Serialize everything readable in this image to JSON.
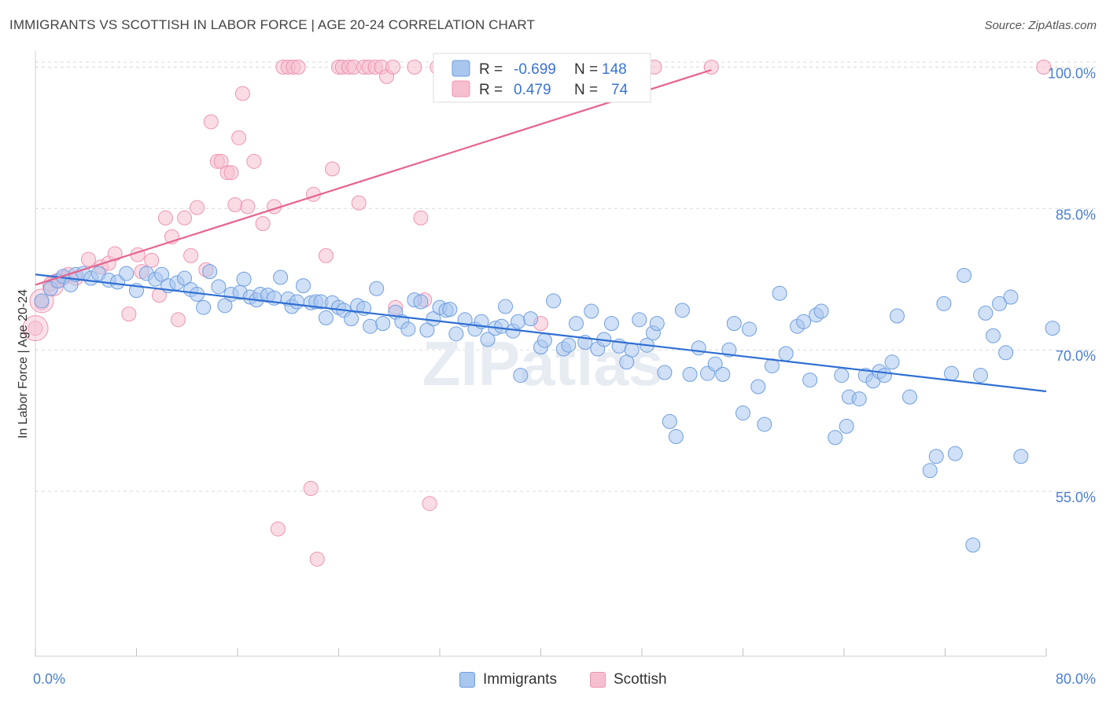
{
  "title": "IMMIGRANTS VS SCOTTISH IN LABOR FORCE | AGE 20-24 CORRELATION CHART",
  "source": "Source: ZipAtlas.com",
  "watermark": "ZIPatlas",
  "legend_box": {
    "rows": [
      {
        "r_label": "R =",
        "r_value": "-0.699",
        "n_label": "N =",
        "n_value": "148"
      },
      {
        "r_label": "R =",
        "r_value": "0.479",
        "n_label": "N =",
        "n_value": "74"
      }
    ]
  },
  "bottom_legend": {
    "immigrants": "Immigrants",
    "scottish": "Scottish"
  },
  "colors": {
    "immigrants_fill": "#a9c6ee",
    "immigrants_stroke": "#6f9fe0",
    "immigrants_line": "#2f6fd4",
    "scottish_fill": "#f6bfd0",
    "scottish_stroke": "#ee94b2",
    "scottish_line": "#e5648f",
    "tick_text": "#4a7fd0",
    "grid": "#d9d9d9"
  },
  "chart_data": {
    "type": "scatter",
    "title": "IMMIGRANTS VS SCOTTISH IN LABOR FORCE | AGE 20-24 CORRELATION CHART",
    "xlabel": "",
    "ylabel": "In Labor Force | Age 20-24",
    "xlim": [
      0,
      80
    ],
    "ylim": [
      37.5,
      101.7
    ],
    "x_tick_labels": [
      "0.0%",
      "80.0%"
    ],
    "y_tick_labels": [
      "100.0%",
      "85.0%",
      "70.0%",
      "55.0%"
    ],
    "y_ticks": [
      100,
      85,
      70,
      55
    ],
    "grid": true,
    "legend_position": "top-center",
    "series": [
      {
        "name": "Immigrants",
        "r": -0.699,
        "n": 148,
        "trend": {
          "x": [
            0,
            80
          ],
          "y": [
            78.0,
            65.6
          ]
        },
        "points": [
          [
            0.5,
            75.2
          ],
          [
            1.2,
            76.5
          ],
          [
            1.8,
            77.3
          ],
          [
            2.2,
            77.8
          ],
          [
            2.8,
            76.9
          ],
          [
            3.2,
            78.0
          ],
          [
            3.8,
            78.1
          ],
          [
            4.4,
            77.6
          ],
          [
            5.0,
            78.1
          ],
          [
            5.8,
            77.4
          ],
          [
            6.5,
            77.2
          ],
          [
            7.2,
            78.1
          ],
          [
            8.0,
            76.3
          ],
          [
            8.8,
            78.1
          ],
          [
            9.5,
            77.5
          ],
          [
            10.0,
            78.0
          ],
          [
            10.5,
            76.8
          ],
          [
            11.2,
            77.1
          ],
          [
            11.8,
            77.6
          ],
          [
            12.3,
            76.4
          ],
          [
            12.8,
            75.9
          ],
          [
            13.3,
            74.5
          ],
          [
            13.8,
            78.3
          ],
          [
            14.5,
            76.7
          ],
          [
            15.0,
            74.7
          ],
          [
            15.5,
            75.9
          ],
          [
            16.2,
            76.1
          ],
          [
            16.5,
            77.5
          ],
          [
            17.0,
            75.6
          ],
          [
            17.5,
            75.3
          ],
          [
            17.8,
            75.9
          ],
          [
            18.4,
            75.8
          ],
          [
            18.9,
            75.5
          ],
          [
            19.4,
            77.7
          ],
          [
            20.0,
            75.4
          ],
          [
            20.3,
            74.6
          ],
          [
            20.7,
            75.1
          ],
          [
            21.2,
            76.8
          ],
          [
            21.8,
            75.0
          ],
          [
            22.2,
            75.1
          ],
          [
            22.6,
            75.1
          ],
          [
            23.0,
            73.4
          ],
          [
            23.5,
            75.0
          ],
          [
            24.0,
            74.5
          ],
          [
            24.4,
            74.2
          ],
          [
            25.0,
            73.3
          ],
          [
            25.5,
            74.7
          ],
          [
            26.0,
            74.4
          ],
          [
            26.5,
            72.5
          ],
          [
            27.0,
            76.5
          ],
          [
            27.5,
            72.8
          ],
          [
            28.5,
            74.0
          ],
          [
            29.0,
            73.0
          ],
          [
            29.5,
            72.2
          ],
          [
            30.0,
            75.3
          ],
          [
            30.5,
            75.1
          ],
          [
            31.0,
            72.1
          ],
          [
            31.5,
            73.3
          ],
          [
            32.0,
            74.5
          ],
          [
            32.5,
            74.2
          ],
          [
            32.8,
            74.3
          ],
          [
            33.3,
            71.7
          ],
          [
            34.0,
            73.2
          ],
          [
            34.8,
            72.2
          ],
          [
            35.3,
            73.0
          ],
          [
            35.8,
            71.1
          ],
          [
            36.4,
            72.3
          ],
          [
            36.9,
            72.5
          ],
          [
            37.2,
            74.6
          ],
          [
            37.8,
            72.0
          ],
          [
            38.2,
            73.0
          ],
          [
            38.4,
            67.3
          ],
          [
            39.2,
            73.3
          ],
          [
            40.0,
            70.3
          ],
          [
            40.3,
            71.0
          ],
          [
            41.0,
            75.2
          ],
          [
            41.8,
            70.1
          ],
          [
            42.2,
            70.5
          ],
          [
            42.8,
            72.8
          ],
          [
            43.5,
            70.8
          ],
          [
            44.0,
            74.1
          ],
          [
            44.5,
            70.1
          ],
          [
            45.0,
            71.1
          ],
          [
            45.6,
            72.8
          ],
          [
            46.2,
            70.4
          ],
          [
            46.8,
            68.7
          ],
          [
            47.2,
            70.0
          ],
          [
            47.8,
            73.2
          ],
          [
            48.4,
            70.5
          ],
          [
            48.9,
            71.8
          ],
          [
            49.2,
            72.8
          ],
          [
            49.8,
            67.6
          ],
          [
            50.2,
            62.4
          ],
          [
            50.7,
            60.8
          ],
          [
            51.2,
            74.2
          ],
          [
            51.8,
            67.4
          ],
          [
            52.5,
            70.2
          ],
          [
            53.2,
            67.5
          ],
          [
            53.8,
            68.5
          ],
          [
            54.4,
            67.4
          ],
          [
            54.9,
            70.0
          ],
          [
            55.3,
            72.8
          ],
          [
            56.0,
            63.3
          ],
          [
            56.5,
            72.2
          ],
          [
            57.2,
            66.1
          ],
          [
            57.7,
            62.1
          ],
          [
            58.3,
            68.3
          ],
          [
            58.9,
            76.0
          ],
          [
            59.4,
            69.6
          ],
          [
            60.3,
            72.5
          ],
          [
            60.8,
            73.0
          ],
          [
            61.3,
            66.8
          ],
          [
            61.8,
            73.7
          ],
          [
            62.2,
            74.1
          ],
          [
            63.3,
            60.7
          ],
          [
            63.8,
            67.3
          ],
          [
            64.2,
            61.9
          ],
          [
            64.4,
            65.0
          ],
          [
            65.2,
            64.8
          ],
          [
            65.7,
            67.3
          ],
          [
            66.3,
            66.7
          ],
          [
            66.8,
            67.7
          ],
          [
            67.2,
            67.3
          ],
          [
            67.8,
            68.7
          ],
          [
            68.2,
            73.6
          ],
          [
            69.2,
            65.0
          ],
          [
            70.8,
            57.2
          ],
          [
            71.3,
            58.7
          ],
          [
            71.9,
            74.9
          ],
          [
            72.5,
            67.5
          ],
          [
            72.8,
            59.0
          ],
          [
            73.5,
            77.9
          ],
          [
            74.2,
            49.3
          ],
          [
            74.8,
            67.3
          ],
          [
            75.2,
            73.9
          ],
          [
            75.8,
            71.5
          ],
          [
            76.3,
            74.9
          ],
          [
            76.8,
            69.7
          ],
          [
            77.2,
            75.6
          ],
          [
            78.0,
            58.7
          ],
          [
            80.5,
            72.3
          ]
        ]
      },
      {
        "name": "Scottish",
        "r": 0.479,
        "n": 74,
        "trend": {
          "x": [
            0,
            53.5
          ],
          "y": [
            76.9,
            99.7
          ]
        },
        "points": [
          [
            0.0,
            72.3
          ],
          [
            0.5,
            75.0
          ],
          [
            1.2,
            77.0
          ],
          [
            1.6,
            77.3
          ],
          [
            2.2,
            77.6
          ],
          [
            2.6,
            78.0
          ],
          [
            3.2,
            77.6
          ],
          [
            4.2,
            79.6
          ],
          [
            5.2,
            78.8
          ],
          [
            5.8,
            79.2
          ],
          [
            6.3,
            80.2
          ],
          [
            7.4,
            73.8
          ],
          [
            8.1,
            80.1
          ],
          [
            8.4,
            78.3
          ],
          [
            9.2,
            79.5
          ],
          [
            9.8,
            75.8
          ],
          [
            10.3,
            84.0
          ],
          [
            10.8,
            82.0
          ],
          [
            11.3,
            73.2
          ],
          [
            11.8,
            84.0
          ],
          [
            12.3,
            80.0
          ],
          [
            12.8,
            85.1
          ],
          [
            13.5,
            78.5
          ],
          [
            13.9,
            94.2
          ],
          [
            14.4,
            90.0
          ],
          [
            14.7,
            90.0
          ],
          [
            15.2,
            88.8
          ],
          [
            15.5,
            88.8
          ],
          [
            15.8,
            85.4
          ],
          [
            16.1,
            92.5
          ],
          [
            16.4,
            97.2
          ],
          [
            16.8,
            85.2
          ],
          [
            17.3,
            90.0
          ],
          [
            18.0,
            83.4
          ],
          [
            18.9,
            85.2
          ],
          [
            19.2,
            51.0
          ],
          [
            19.6,
            100.0
          ],
          [
            20.0,
            100.0
          ],
          [
            20.4,
            100.0
          ],
          [
            20.8,
            100.0
          ],
          [
            21.8,
            55.3
          ],
          [
            22.0,
            86.5
          ],
          [
            22.3,
            47.8
          ],
          [
            23.0,
            80.0
          ],
          [
            23.5,
            89.2
          ],
          [
            24.0,
            100.0
          ],
          [
            24.3,
            100.0
          ],
          [
            24.8,
            100.0
          ],
          [
            25.2,
            100.0
          ],
          [
            25.6,
            85.6
          ],
          [
            26.0,
            100.0
          ],
          [
            26.4,
            100.0
          ],
          [
            26.9,
            100.0
          ],
          [
            27.4,
            100.0
          ],
          [
            27.8,
            99.0
          ],
          [
            28.3,
            100.0
          ],
          [
            28.5,
            74.5
          ],
          [
            30.0,
            100.0
          ],
          [
            30.5,
            84.0
          ],
          [
            30.8,
            75.3
          ],
          [
            31.2,
            53.7
          ],
          [
            31.8,
            100.0
          ],
          [
            33.2,
            100.0
          ],
          [
            37.8,
            100.0
          ],
          [
            38.3,
            100.0
          ],
          [
            39.2,
            100.0
          ],
          [
            40.0,
            72.8
          ],
          [
            41.2,
            100.0
          ],
          [
            44.0,
            100.0
          ],
          [
            47.5,
            100.0
          ],
          [
            49.0,
            100.0
          ],
          [
            53.5,
            100.0
          ],
          [
            79.8,
            100.0
          ]
        ]
      }
    ]
  }
}
